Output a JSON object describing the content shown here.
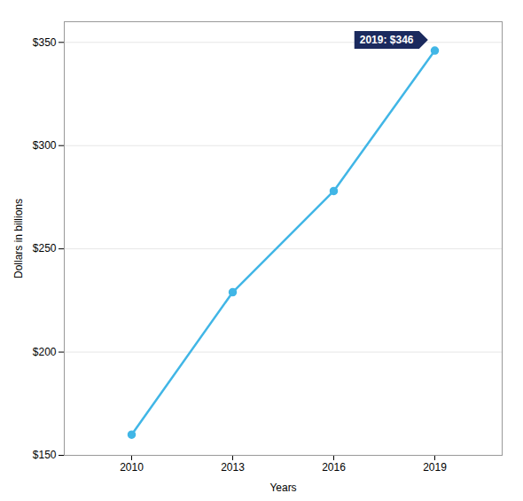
{
  "chart_data": {
    "type": "line",
    "x": [
      2010,
      2013,
      2016,
      2019
    ],
    "values": [
      160,
      229,
      278,
      346
    ],
    "color": "#41B6E6",
    "marker": "circle",
    "xlabel": "Years",
    "ylabel": "Dollars in billions",
    "xlim": [
      2008.0,
      2021.0
    ],
    "ylim": [
      150,
      360
    ],
    "xticks": [
      2010,
      2013,
      2016,
      2019
    ],
    "yticks": [
      {
        "value": 150,
        "label": "$150"
      },
      {
        "value": 200,
        "label": "$200"
      },
      {
        "value": 250,
        "label": "$250"
      },
      {
        "value": 300,
        "label": "$300"
      },
      {
        "value": 350,
        "label": "$350"
      }
    ],
    "grid": true,
    "annotations": [
      {
        "text": "2019: $346",
        "x": 2019,
        "y": 346
      }
    ]
  }
}
